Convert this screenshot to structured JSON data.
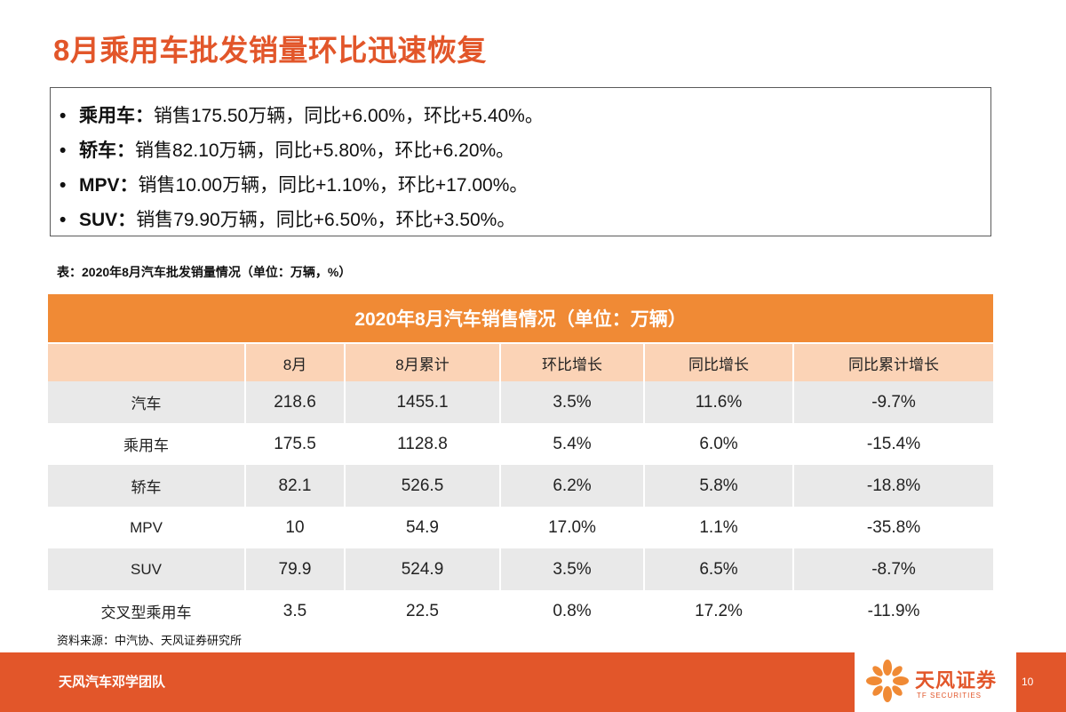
{
  "slide": {
    "title": "8月乘用车批发销量环比迅速恢复"
  },
  "summary": {
    "items": [
      {
        "bullet": "•",
        "label": "乘用车：",
        "text": "销售175.50万辆，同比+6.00%，环比+5.40%。"
      },
      {
        "bullet": "•",
        "label": "轿车：",
        "text": "销售82.10万辆，同比+5.80%，环比+6.20%。"
      },
      {
        "bullet": "•",
        "label": "MPV：",
        "text": "销售10.00万辆，同比+1.10%，环比+17.00%。"
      },
      {
        "bullet": "•",
        "label": "SUV：",
        "text": "销售79.90万辆，同比+6.50%，环比+3.50%。"
      }
    ]
  },
  "table": {
    "caption": "表：2020年8月汽车批发销量情况（单位：万辆，%）",
    "title": "2020年8月汽车销售情况（单位：万辆）",
    "headers": [
      "",
      "8月",
      "8月累计",
      "环比增长",
      "同比增长",
      "同比累计增长"
    ],
    "rows": [
      [
        "汽车",
        "218.6",
        "1455.1",
        "3.5%",
        "11.6%",
        "-9.7%"
      ],
      [
        "乘用车",
        "175.5",
        "1128.8",
        "5.4%",
        "6.0%",
        "-15.4%"
      ],
      [
        "轿车",
        "82.1",
        "526.5",
        "6.2%",
        "5.8%",
        "-18.8%"
      ],
      [
        "MPV",
        "10",
        "54.9",
        "17.0%",
        "1.1%",
        "-35.8%"
      ],
      [
        "SUV",
        "79.9",
        "524.9",
        "3.5%",
        "6.5%",
        "-8.7%"
      ],
      [
        "交叉型乘用车",
        "3.5",
        "22.5",
        "0.8%",
        "17.2%",
        "-11.9%"
      ]
    ]
  },
  "source": "资料来源：中汽协、天风证券研究所",
  "footer": {
    "team": "天风汽车邓学团队",
    "logo_cn": "天风证券",
    "logo_en": "TF SECURITIES",
    "logo_icon": "tf-flower-logo-icon",
    "page_number": "10"
  },
  "colors": {
    "accent": "#e2562a",
    "table_title_bg": "#f08a35",
    "table_header_bg": "#fbd3b6",
    "row_shade": "#e9e9e9"
  }
}
